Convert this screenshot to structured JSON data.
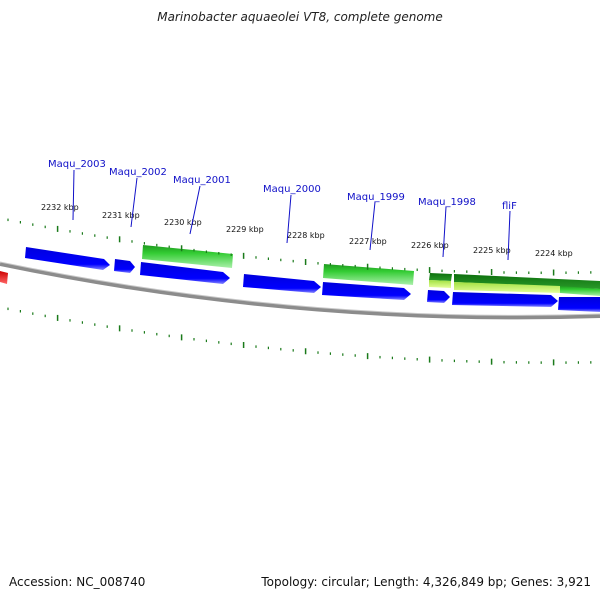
{
  "title": "Marinobacter aquaeolei VT8, complete genome",
  "footer": {
    "accession": "Accession: NC_008740",
    "summary": "Topology: circular; Length: 4,326,849 bp; Genes: 3,921"
  },
  "colors": {
    "forward_gene": "#0000ee",
    "reverse_gene": "#22bb22",
    "reverse_gene_dark": "#118811",
    "highlight_gene": "#c8f050",
    "other_feature": "#ff0000",
    "backbone": "#808080",
    "ticks": "#1a7a1a",
    "label": "#1010c8"
  },
  "kbp_labels": [
    "2232 kbp",
    "2231 kbp",
    "2230 kbp",
    "2229 kbp",
    "2228 kbp",
    "2227 kbp",
    "2226 kbp",
    "2225 kbp",
    "2224 kbp"
  ],
  "gene_labels": [
    "Maqu_2003",
    "Maqu_2002",
    "Maqu_2001",
    "Maqu_2000",
    "Maqu_1999",
    "Maqu_1998",
    "fliF"
  ]
}
